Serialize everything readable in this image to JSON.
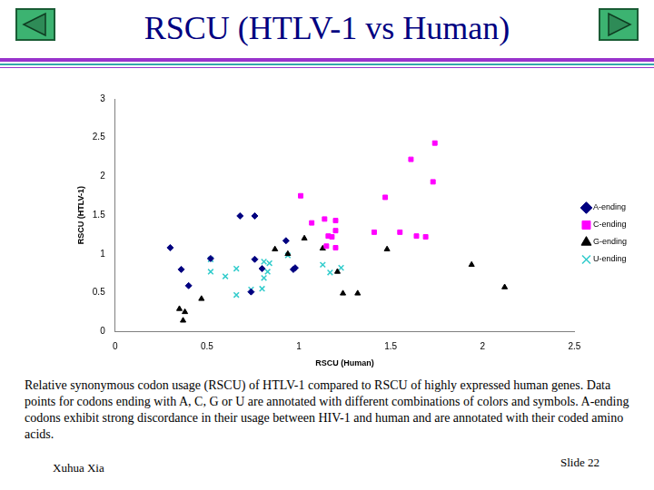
{
  "slide": {
    "title": "RSCU (HTLV-1 vs Human)",
    "caption": "Relative synonymous codon usage (RSCU) of HTLV-1 compared to RSCU of highly expressed human genes. Data points for codons ending with A, C, G or U are annotated with different combinations of colors and symbols. A-ending codons exhibit strong discordance in their usage between HIV-1 and human and are annotated with their coded amino acids.",
    "author": "Xuhua Xia",
    "slide_number": "Slide 22"
  },
  "chart_data": {
    "type": "scatter",
    "x_label": "RSCU (Human)",
    "y_label": "RSCU (HTLV-1)",
    "xlim": [
      0,
      2.5
    ],
    "xticks": [
      0,
      0.5,
      1,
      1.5,
      2,
      2.5
    ],
    "ylim": [
      0,
      3
    ],
    "yticks": [
      0,
      0.5,
      1,
      1.5,
      2,
      2.5,
      3
    ],
    "grid": false,
    "legend": "right",
    "series": [
      {
        "name": "A-ending",
        "color": "#000080",
        "marker": "diamond",
        "x": [
          0.3,
          0.36,
          0.4,
          0.52,
          0.68,
          0.76,
          0.74,
          0.76,
          0.8,
          0.93,
          0.97,
          0.98
        ],
        "values": [
          1.08,
          0.8,
          0.59,
          0.94,
          1.49,
          1.49,
          0.51,
          0.93,
          0.81,
          1.17,
          0.8,
          0.82
        ]
      },
      {
        "name": "C-ending",
        "color": "#ff00ff",
        "marker": "square",
        "x": [
          1.01,
          1.07,
          1.14,
          1.16,
          1.18,
          1.2,
          1.2,
          1.2,
          1.15,
          1.47,
          1.41,
          1.55,
          1.61,
          1.64,
          1.69,
          1.73,
          1.74
        ],
        "values": [
          1.75,
          1.4,
          1.45,
          1.23,
          1.22,
          1.43,
          1.3,
          1.08,
          1.1,
          1.73,
          1.28,
          1.28,
          2.22,
          1.23,
          1.22,
          1.93,
          2.43
        ]
      },
      {
        "name": "G-ending",
        "color": "#000000",
        "marker": "triangle",
        "x": [
          0.35,
          0.38,
          0.37,
          0.47,
          0.87,
          0.94,
          1.03,
          1.13,
          1.21,
          1.24,
          1.32,
          1.48,
          1.94,
          2.12
        ],
        "values": [
          0.29,
          0.25,
          0.14,
          0.42,
          1.06,
          1.0,
          1.2,
          1.07,
          0.77,
          0.49,
          0.49,
          1.06,
          0.86,
          0.57
        ]
      },
      {
        "name": "U-ending",
        "color": "#33cccc",
        "marker": "x",
        "x": [
          0.52,
          0.52,
          0.6,
          0.66,
          0.66,
          0.74,
          0.8,
          0.81,
          0.81,
          0.83,
          0.84,
          0.94,
          1.13,
          1.17,
          1.23
        ],
        "values": [
          0.93,
          0.77,
          0.71,
          0.81,
          0.47,
          0.54,
          0.55,
          0.69,
          0.9,
          0.77,
          0.88,
          0.98,
          0.86,
          0.76,
          0.82
        ]
      }
    ]
  }
}
